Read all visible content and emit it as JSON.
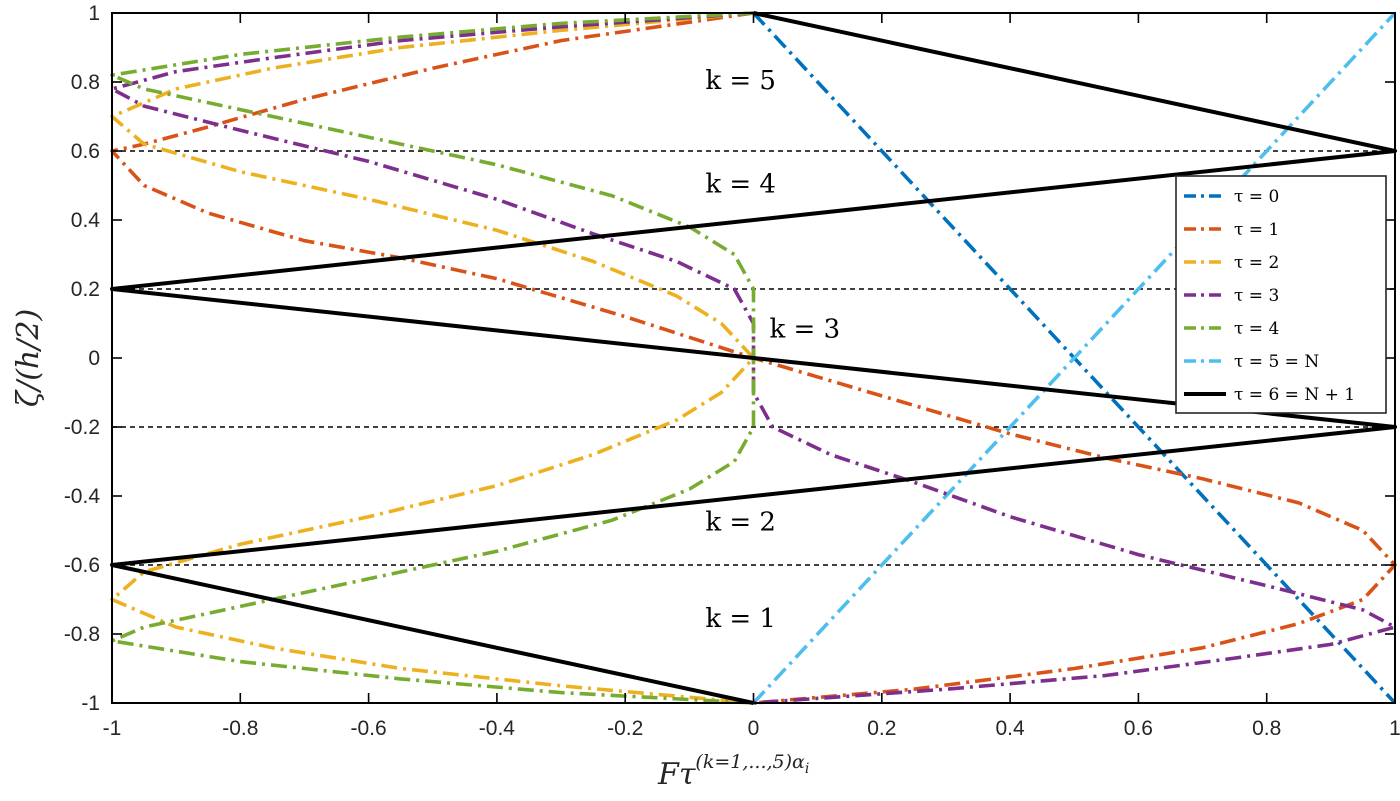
{
  "chart_data": {
    "type": "line",
    "title": "",
    "xlabel": "Fτ",
    "xlabel_superscript": "(k=1,...,5)α",
    "xlabel_subscript": "i",
    "ylabel": "ζ/(h/2)",
    "xlim": [
      -1,
      1
    ],
    "ylim": [
      -1,
      1
    ],
    "x_ticks": [
      "-1",
      "-0.8",
      "-0.6",
      "-0.4",
      "-0.2",
      "0",
      "0.2",
      "0.4",
      "0.6",
      "0.8",
      "1"
    ],
    "y_ticks": [
      "-1",
      "-0.8",
      "-0.6",
      "-0.4",
      "-0.2",
      "0",
      "0.2",
      "0.4",
      "0.6",
      "0.8",
      "1"
    ],
    "interfaces": [
      -0.6,
      -0.2,
      0.2,
      0.6
    ],
    "layer_labels": [
      {
        "text": "k = 1",
        "x": -0.02,
        "y": -0.78
      },
      {
        "text": "k = 2",
        "x": -0.02,
        "y": -0.5
      },
      {
        "text": "k = 3",
        "x": 0.08,
        "y": 0.06
      },
      {
        "text": "k = 4",
        "x": -0.02,
        "y": 0.48
      },
      {
        "text": "k = 5",
        "x": -0.02,
        "y": 0.78
      }
    ],
    "legend_position": "right",
    "series": [
      {
        "name": "τ = 0",
        "color": "#0072BD",
        "style": "dashdot",
        "points": [
          [
            0,
            1
          ],
          [
            1,
            -1
          ]
        ]
      },
      {
        "name": "τ = 1",
        "color": "#D95319",
        "style": "dashdot",
        "points": [
          [
            0,
            1
          ],
          [
            -0.3,
            0.92
          ],
          [
            -0.5,
            0.84
          ],
          [
            -0.7,
            0.75
          ],
          [
            -0.85,
            0.67
          ],
          [
            -0.95,
            0.62
          ],
          [
            -1,
            0.6
          ],
          [
            -0.95,
            0.5
          ],
          [
            -0.85,
            0.42
          ],
          [
            -0.7,
            0.34
          ],
          [
            -0.55,
            0.29
          ],
          [
            -0.4,
            0.23
          ],
          [
            -0.2,
            0.12
          ],
          [
            0,
            0
          ],
          [
            0.2,
            -0.11
          ],
          [
            0.4,
            -0.22
          ],
          [
            0.55,
            -0.29
          ],
          [
            0.7,
            -0.35
          ],
          [
            0.85,
            -0.42
          ],
          [
            0.95,
            -0.5
          ],
          [
            1,
            -0.6
          ],
          [
            0.95,
            -0.7
          ],
          [
            0.85,
            -0.77
          ],
          [
            0.7,
            -0.84
          ],
          [
            0.5,
            -0.9
          ],
          [
            0.25,
            -0.96
          ],
          [
            0,
            -1
          ]
        ]
      },
      {
        "name": "τ = 2",
        "color": "#EDB120",
        "style": "dashdot",
        "points": [
          [
            0,
            1
          ],
          [
            -0.3,
            0.95
          ],
          [
            -0.55,
            0.9
          ],
          [
            -0.75,
            0.84
          ],
          [
            -0.9,
            0.78
          ],
          [
            -1,
            0.7
          ],
          [
            -0.95,
            0.62
          ],
          [
            -0.8,
            0.54
          ],
          [
            -0.6,
            0.46
          ],
          [
            -0.4,
            0.37
          ],
          [
            -0.25,
            0.28
          ],
          [
            -0.12,
            0.18
          ],
          [
            -0.05,
            0.1
          ],
          [
            0,
            0
          ],
          [
            -0.05,
            -0.1
          ],
          [
            -0.12,
            -0.18
          ],
          [
            -0.25,
            -0.28
          ],
          [
            -0.4,
            -0.37
          ],
          [
            -0.6,
            -0.46
          ],
          [
            -0.8,
            -0.54
          ],
          [
            -0.95,
            -0.62
          ],
          [
            -1,
            -0.7
          ],
          [
            -0.9,
            -0.78
          ],
          [
            -0.75,
            -0.84
          ],
          [
            -0.55,
            -0.9
          ],
          [
            -0.3,
            -0.95
          ],
          [
            0,
            -1
          ]
        ]
      },
      {
        "name": "τ = 3",
        "color": "#7E2F8E",
        "style": "dashdot",
        "points": [
          [
            0,
            1
          ],
          [
            -0.3,
            0.96
          ],
          [
            -0.55,
            0.92
          ],
          [
            -0.75,
            0.87
          ],
          [
            -0.9,
            0.83
          ],
          [
            -1,
            0.78
          ],
          [
            -0.95,
            0.73
          ],
          [
            -0.8,
            0.66
          ],
          [
            -0.6,
            0.57
          ],
          [
            -0.4,
            0.46
          ],
          [
            -0.25,
            0.36
          ],
          [
            -0.12,
            0.28
          ],
          [
            -0.03,
            0.2
          ],
          [
            0,
            0.1
          ],
          [
            0,
            0
          ],
          [
            0,
            -0.1
          ],
          [
            0.03,
            -0.2
          ],
          [
            0.12,
            -0.28
          ],
          [
            0.25,
            -0.36
          ],
          [
            0.4,
            -0.46
          ],
          [
            0.6,
            -0.57
          ],
          [
            0.8,
            -0.66
          ],
          [
            0.95,
            -0.73
          ],
          [
            1,
            -0.78
          ],
          [
            0.9,
            -0.83
          ],
          [
            0.75,
            -0.87
          ],
          [
            0.55,
            -0.92
          ],
          [
            0.3,
            -0.96
          ],
          [
            0,
            -1
          ]
        ]
      },
      {
        "name": "τ = 4",
        "color": "#77AC30",
        "style": "dashdot",
        "points": [
          [
            0,
            1
          ],
          [
            -0.3,
            0.97
          ],
          [
            -0.55,
            0.93
          ],
          [
            -0.8,
            0.88
          ],
          [
            -1,
            0.82
          ],
          [
            -0.95,
            0.78
          ],
          [
            -0.8,
            0.72
          ],
          [
            -0.6,
            0.64
          ],
          [
            -0.4,
            0.56
          ],
          [
            -0.22,
            0.47
          ],
          [
            -0.1,
            0.38
          ],
          [
            -0.03,
            0.3
          ],
          [
            0,
            0.2
          ],
          [
            0,
            0
          ],
          [
            0,
            -0.2
          ],
          [
            -0.03,
            -0.3
          ],
          [
            -0.1,
            -0.38
          ],
          [
            -0.22,
            -0.47
          ],
          [
            -0.4,
            -0.56
          ],
          [
            -0.6,
            -0.64
          ],
          [
            -0.8,
            -0.72
          ],
          [
            -0.95,
            -0.78
          ],
          [
            -1,
            -0.82
          ],
          [
            -0.8,
            -0.88
          ],
          [
            -0.55,
            -0.93
          ],
          [
            -0.3,
            -0.97
          ],
          [
            0,
            -1
          ]
        ]
      },
      {
        "name": "τ = 5 = N",
        "color": "#4DBEEE",
        "style": "dashdot",
        "points": [
          [
            0,
            -1
          ],
          [
            1,
            1
          ]
        ]
      },
      {
        "name": "τ = 6 = N + 1",
        "color": "#000000",
        "style": "solid",
        "points": [
          [
            0,
            1
          ],
          [
            1,
            0.6
          ],
          [
            -1,
            0.2
          ],
          [
            1,
            -0.2
          ],
          [
            -1,
            -0.6
          ],
          [
            0,
            -1
          ]
        ]
      }
    ]
  }
}
